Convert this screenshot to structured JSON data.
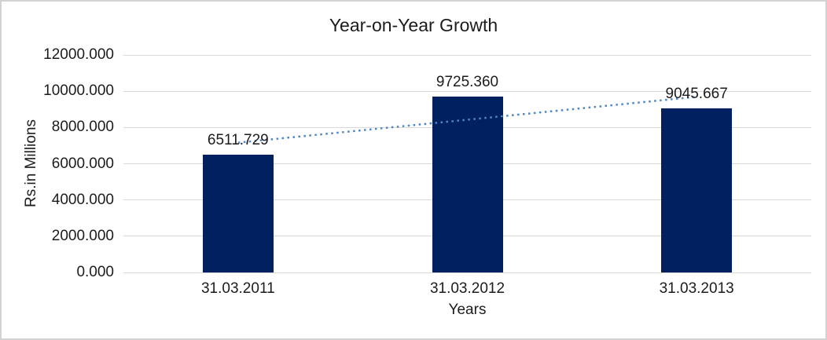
{
  "frame": {
    "background": "#ffffff",
    "border_color": "#d2d2d2"
  },
  "chart_data": {
    "type": "bar",
    "title": "Year-on-Year Growth",
    "xlabel": "Years",
    "ylabel": "Rs.in Millions",
    "categories": [
      "31.03.2011",
      "31.03.2012",
      "31.03.2013"
    ],
    "values": [
      6511.729,
      9725.36,
      9045.667
    ],
    "data_labels": [
      "6511.729",
      "9725.360",
      "9045.667"
    ],
    "ylim": [
      0,
      12000
    ],
    "ytick_values": [
      12000,
      10000,
      8000,
      6000,
      4000,
      2000,
      0
    ],
    "ytick_labels": [
      "12000.000",
      "10000.000",
      "8000.000",
      "6000.000",
      "4000.000",
      "2000.000",
      "0.000"
    ],
    "grid": true,
    "legend": "none",
    "bar_color": "#002060",
    "gridline_color": "#d9d9d9",
    "text_color": "#1c1c1c",
    "trendline": {
      "type": "linear",
      "style": "dotted",
      "color": "#4f86c4",
      "start_value": 7160.616,
      "end_value": 9694.554
    }
  }
}
